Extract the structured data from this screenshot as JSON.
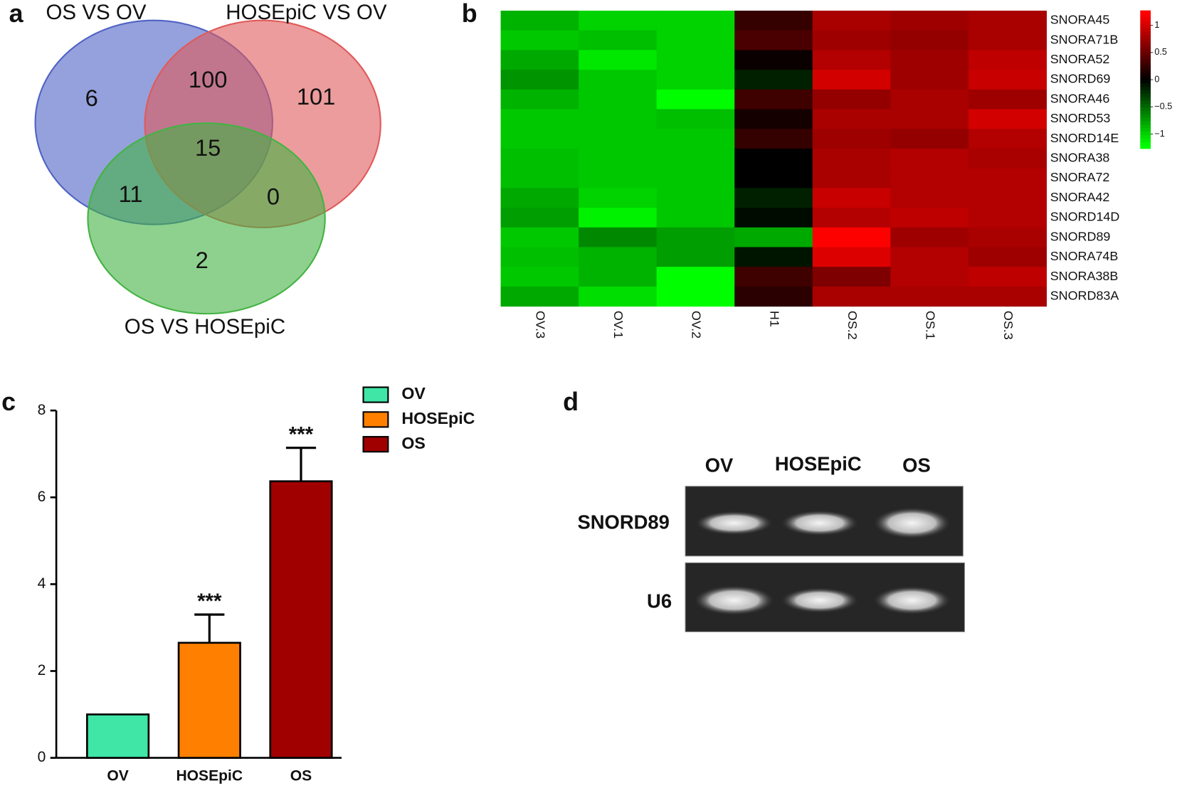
{
  "panel_labels": [
    "a",
    "b",
    "c",
    "d"
  ],
  "chart_data": [
    {
      "type": "venn",
      "sets": [
        {
          "name": "OS VS OV",
          "color": "#4f63c4"
        },
        {
          "name": "HOSEpiC VS OV",
          "color": "#e05a5a"
        },
        {
          "name": "OS VS HOSEpiC",
          "color": "#43b343"
        }
      ],
      "values": [
        6,
        101,
        2,
        100,
        11,
        0,
        15
      ]
    },
    {
      "type": "heatmap",
      "columns": [
        "OV.3",
        "OV.1",
        "OV.2",
        "H1",
        "OS.2",
        "OS.1",
        "OS.3"
      ],
      "rows": [
        "SNORA45",
        "SNORA71B",
        "SNORA52",
        "SNORD69",
        "SNORA46",
        "SNORD53",
        "SNORD14E",
        "SNORA38",
        "SNORA72",
        "SNORA42",
        "SNORD14D",
        "SNORD89",
        "SNORA74B",
        "SNORA38B",
        "SNORD83A"
      ],
      "values": [
        [
          -0.85,
          -1.0,
          -1.0,
          0.25,
          0.8,
          0.75,
          0.8
        ],
        [
          -0.95,
          -0.9,
          -1.0,
          0.35,
          0.75,
          0.7,
          0.8
        ],
        [
          -0.8,
          -1.1,
          -1.0,
          0.05,
          0.85,
          0.75,
          0.9
        ],
        [
          -0.7,
          -0.95,
          -1.0,
          -0.15,
          1.0,
          0.75,
          0.95
        ],
        [
          -0.85,
          -0.95,
          -1.2,
          0.3,
          0.7,
          0.8,
          0.75
        ],
        [
          -0.95,
          -0.95,
          -0.9,
          0.1,
          0.8,
          0.8,
          1.0
        ],
        [
          -0.95,
          -0.95,
          -0.95,
          0.25,
          0.75,
          0.7,
          0.85
        ],
        [
          -0.9,
          -0.95,
          -0.95,
          0.0,
          0.8,
          0.85,
          0.8
        ],
        [
          -0.9,
          -0.95,
          -0.95,
          0.0,
          0.8,
          0.85,
          0.85
        ],
        [
          -0.8,
          -1.0,
          -0.95,
          -0.15,
          0.95,
          0.85,
          0.85
        ],
        [
          -0.75,
          -1.15,
          -0.95,
          -0.05,
          0.85,
          0.9,
          0.85
        ],
        [
          -0.95,
          -0.65,
          -0.75,
          -0.8,
          1.2,
          0.75,
          0.8
        ],
        [
          -0.9,
          -0.85,
          -0.75,
          -0.1,
          1.05,
          0.85,
          0.75
        ],
        [
          -0.95,
          -0.85,
          -1.2,
          0.3,
          0.6,
          0.85,
          0.9
        ],
        [
          -0.8,
          -1.05,
          -1.2,
          0.2,
          0.8,
          0.8,
          0.8
        ]
      ],
      "zlim": [
        -1.27,
        1.27
      ],
      "zticks": [
        1,
        0.5,
        0,
        {
          "value": -0.5,
          "label": "−0.5"
        },
        {
          "value": -1,
          "label": "−1"
        }
      ]
    },
    {
      "type": "bar",
      "categories": [
        "OV",
        "HOSEpiC",
        "OS"
      ],
      "values": [
        1,
        2.65,
        6.37
      ],
      "errors": [
        0,
        0.65,
        0.77
      ],
      "annotations": [
        null,
        "***",
        "***"
      ],
      "colors": [
        "#3fe6a6",
        "#ff8000",
        "#a00000"
      ],
      "ylim": [
        0,
        8
      ],
      "yticks": [
        0,
        2,
        4,
        6,
        8
      ],
      "legend": "top-right"
    }
  ],
  "gel": {
    "lanes": [
      "OV",
      "HOSEpiC",
      "OS"
    ],
    "rows": [
      "SNORD89",
      "U6"
    ]
  }
}
